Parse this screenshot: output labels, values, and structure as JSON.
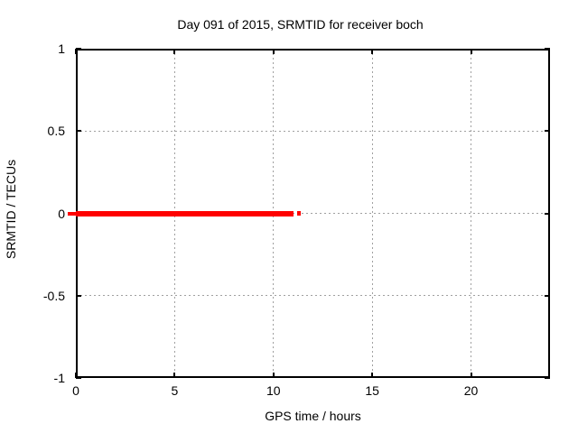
{
  "chart_data": {
    "type": "line",
    "title": "Day 091 of 2015, SRMTID for receiver boch",
    "xlabel": "GPS time / hours",
    "ylabel": "SRMTID / TECUs",
    "xlim": [
      0,
      24
    ],
    "ylim": [
      -1,
      1
    ],
    "xticks": [
      0,
      5,
      10,
      15,
      20
    ],
    "yticks": [
      1,
      0.5,
      0,
      -0.5,
      -1
    ],
    "grid": true,
    "legend": "none",
    "series": [
      {
        "name": "SRMTID",
        "color": "#ff0000",
        "y_value": 0,
        "x_start": 0,
        "x_end": 11.2,
        "segments": [
          {
            "x0": -0.4,
            "x1": 0.0,
            "y": 0,
            "lw": 4
          },
          {
            "x0": 0.0,
            "x1": 11.0,
            "y": 0,
            "lw": 6
          },
          {
            "x0": 11.2,
            "x1": 11.4,
            "y": 0,
            "lw": 5
          }
        ]
      }
    ],
    "colors": {
      "background": "#ffffff",
      "axis": "#000000",
      "text": "#000000",
      "grid": "#a0a0a0",
      "series": "#ff0000"
    }
  }
}
